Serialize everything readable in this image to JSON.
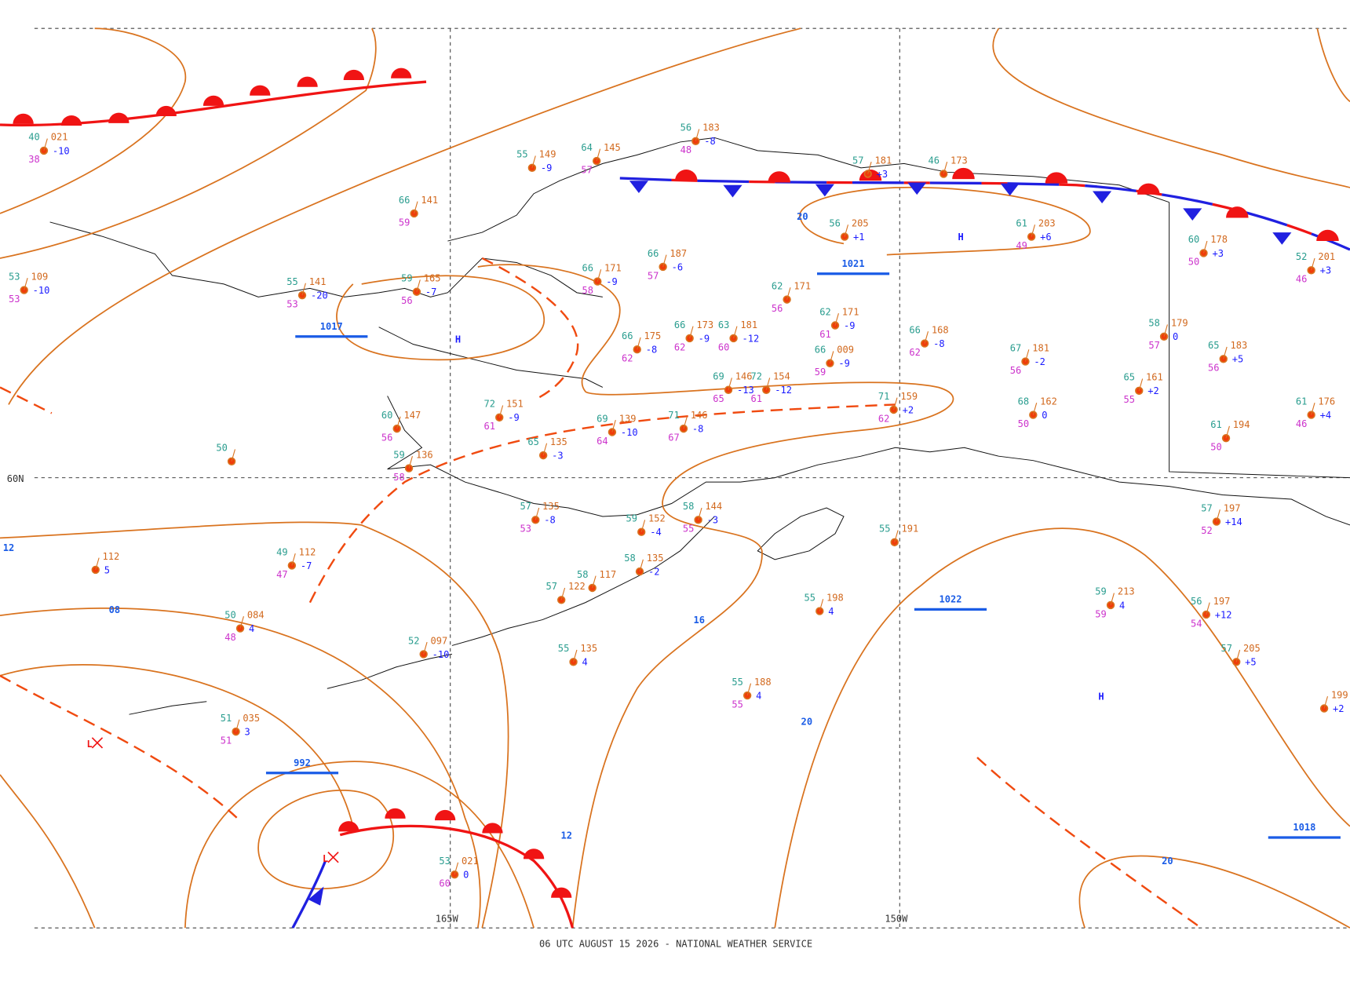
{
  "footer": "06 UTC AUGUST 15 2026 - NATIONAL WEATHER SERVICE",
  "grid_labels": [
    "60N",
    "165W",
    "150W"
  ],
  "highs": [
    "H",
    "H",
    "H"
  ],
  "lows": [
    "L",
    "L"
  ],
  "pressure_labels": [
    "1017",
    "992",
    "1021",
    "1022",
    "1018"
  ],
  "isobar_labels": [
    "20",
    "12",
    "08",
    "16",
    "20",
    "12",
    "20"
  ],
  "stations": [
    {
      "temp": "40",
      "pressure": "021",
      "dewpoint": "38",
      "tendency": "-10"
    },
    {
      "temp": "53",
      "pressure": "109",
      "dewpoint": "53",
      "tendency": "-10"
    },
    {
      "temp": "55",
      "pressure": "141",
      "dewpoint": "53",
      "tendency": "-20"
    },
    {
      "temp": "66",
      "pressure": "141",
      "dewpoint": "59"
    },
    {
      "temp": "55",
      "pressure": "149",
      "tendency": "-9"
    },
    {
      "temp": "64",
      "pressure": "145",
      "dewpoint": "57"
    },
    {
      "temp": "56",
      "pressure": "183",
      "dewpoint": "48",
      "tendency": "-8"
    },
    {
      "temp": "57",
      "pressure": "181",
      "tendency": "+3"
    },
    {
      "temp": "46",
      "pressure": "173"
    },
    {
      "temp": "56",
      "pressure": "205",
      "tendency": "+1"
    },
    {
      "temp": "61",
      "pressure": "203",
      "dewpoint": "49",
      "tendency": "+6"
    },
    {
      "temp": "60",
      "pressure": "178",
      "dewpoint": "50",
      "tendency": "+3"
    },
    {
      "temp": "52",
      "pressure": "201",
      "dewpoint": "46",
      "tendency": "+3"
    },
    {
      "temp": "59",
      "pressure": "165",
      "dewpoint": "56",
      "tendency": "-7"
    },
    {
      "temp": "66",
      "pressure": "171",
      "dewpoint": "58",
      "tendency": "-9"
    },
    {
      "temp": "66",
      "pressure": "187",
      "dewpoint": "57",
      "tendency": "-6"
    },
    {
      "temp": "62",
      "pressure": "171",
      "dewpoint": "56"
    },
    {
      "temp": "62",
      "pressure": "171",
      "dewpoint": "61",
      "tendency": "-9"
    },
    {
      "temp": "58",
      "pressure": "179",
      "dewpoint": "57",
      "tendency": "0"
    },
    {
      "temp": "65",
      "pressure": "183",
      "dewpoint": "56",
      "tendency": "+5"
    },
    {
      "temp": "66",
      "pressure": "168",
      "dewpoint": "62",
      "tendency": "-8"
    },
    {
      "temp": "67",
      "pressure": "181",
      "dewpoint": "56",
      "tendency": "-2"
    },
    {
      "temp": "66",
      "pressure": "009",
      "dewpoint": "59",
      "tendency": "-9"
    },
    {
      "temp": "69",
      "pressure": "146",
      "dewpoint": "65",
      "tendency": "-13"
    },
    {
      "temp": "72",
      "pressure": "154",
      "dewpoint": "61",
      "tendency": "-12"
    },
    {
      "temp": "71",
      "pressure": "159",
      "dewpoint": "62",
      "tendency": "+2"
    },
    {
      "temp": "65",
      "pressure": "161",
      "dewpoint": "55",
      "tendency": "+2"
    },
    {
      "temp": "68",
      "pressure": "162",
      "dewpoint": "50",
      "tendency": "0"
    },
    {
      "temp": "61",
      "pressure": "194",
      "dewpoint": "50"
    },
    {
      "temp": "61",
      "pressure": "176",
      "dewpoint": "46",
      "tendency": "+4"
    },
    {
      "temp": "69",
      "pressure": "139",
      "dewpoint": "64",
      "tendency": "-10"
    },
    {
      "temp": "71",
      "pressure": "146",
      "dewpoint": "67",
      "tendency": "-8"
    },
    {
      "temp": "72",
      "pressure": "151",
      "dewpoint": "61",
      "tendency": "-9"
    },
    {
      "temp": "65",
      "pressure": "135",
      "tendency": "-3"
    },
    {
      "temp": "59",
      "pressure": "136",
      "dewpoint": "58"
    },
    {
      "temp": "60",
      "pressure": "147",
      "dewpoint": "56"
    },
    {
      "temp": "50"
    },
    {
      "temp": "49",
      "pressure": "112",
      "dewpoint": "47",
      "tendency": "-7"
    },
    {
      "pressure": "112",
      "tendency": "5"
    },
    {
      "temp": "50",
      "pressure": "084",
      "dewpoint": "48",
      "tendency": "4"
    },
    {
      "temp": "52",
      "pressure": "097",
      "tendency": "-10"
    },
    {
      "temp": "55",
      "pressure": "135",
      "tendency": "4"
    },
    {
      "temp": "55",
      "pressure": "188",
      "dewpoint": "55",
      "tendency": "4"
    },
    {
      "temp": "55",
      "pressure": "198",
      "tendency": "4"
    },
    {
      "temp": "55",
      "pressure": "191"
    },
    {
      "temp": "59",
      "pressure": "213",
      "dewpoint": "59",
      "tendency": "4"
    },
    {
      "temp": "56",
      "pressure": "197",
      "dewpoint": "54",
      "tendency": "+12"
    },
    {
      "temp": "57",
      "pressure": "205",
      "tendency": "+5"
    },
    {
      "pressure": "199",
      "tendency": "+2"
    },
    {
      "temp": "53",
      "pressure": "021",
      "dewpoint": "60",
      "tendency": "0"
    },
    {
      "temp": "51",
      "pressure": "035",
      "dewpoint": "51",
      "tendency": "3"
    },
    {
      "temp": "57",
      "pressure": "197",
      "dewpoint": "52",
      "tendency": "+14"
    },
    {
      "temp": "66",
      "pressure": "173",
      "dewpoint": "62",
      "tendency": "-9"
    },
    {
      "temp": "63",
      "pressure": "181",
      "dewpoint": "60",
      "tendency": "-12"
    },
    {
      "temp": "66",
      "pressure": "175",
      "dewpoint": "62",
      "tendency": "-8"
    },
    {
      "temp": "57",
      "pressure": "135",
      "dewpoint": "53",
      "tendency": "-8"
    },
    {
      "temp": "59",
      "pressure": "152",
      "tendency": "-4"
    },
    {
      "temp": "58",
      "pressure": "144",
      "dewpoint": "55",
      "tendency": "-3"
    },
    {
      "temp": "58",
      "pressure": "135",
      "tendency": "-2"
    },
    {
      "temp": "57",
      "pressure": "122"
    },
    {
      "temp": "58",
      "pressure": "117"
    }
  ]
}
